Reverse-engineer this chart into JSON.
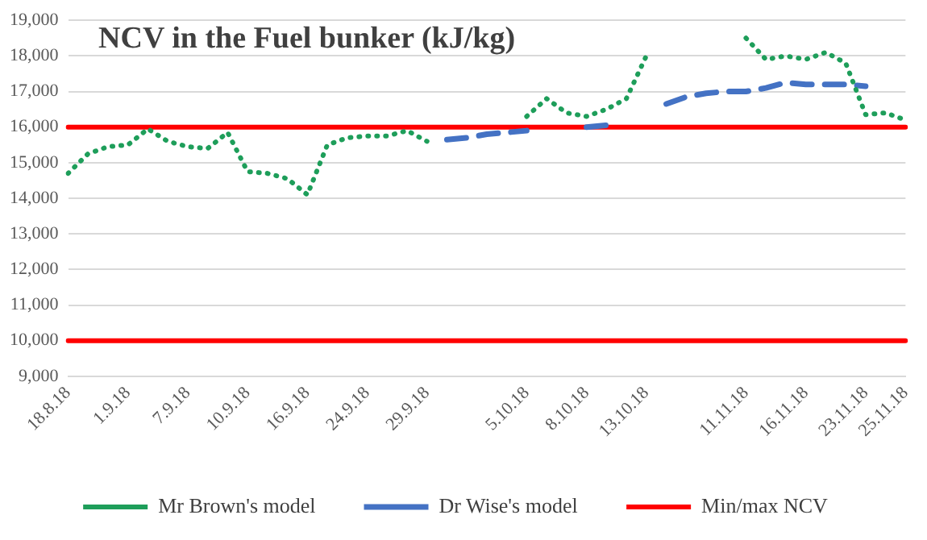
{
  "chart_data": {
    "type": "line",
    "title": "NCV in the Fuel bunker (kJ/kg)",
    "categories": [
      "18.8.18",
      null,
      null,
      "1.9.18",
      null,
      null,
      "7.9.18",
      null,
      null,
      "10.9.18",
      null,
      null,
      "16.9.18",
      null,
      null,
      "24.9.18",
      null,
      null,
      "29.9.18",
      null,
      null,
      null,
      null,
      "5.10.18",
      null,
      null,
      "8.10.18",
      null,
      null,
      "13.10.18",
      null,
      null,
      null,
      null,
      "11.11.18",
      null,
      null,
      "16.11.18",
      null,
      null,
      "23.11.18",
      null,
      "25.11.18"
    ],
    "series": [
      {
        "name": "Mr Brown's model",
        "color": "#1e9e5a",
        "line_style": "dotted",
        "values": [
          14700,
          15250,
          15450,
          15500,
          15950,
          15600,
          15450,
          15400,
          15850,
          14750,
          14700,
          14550,
          14100,
          15500,
          15700,
          15750,
          15750,
          15900,
          15600,
          null,
          null,
          null,
          null,
          16300,
          16800,
          16400,
          16300,
          16500,
          16800,
          18000,
          null,
          null,
          null,
          null,
          18500,
          17900,
          18000,
          17900,
          18100,
          17800,
          16350,
          16400,
          16200
        ]
      },
      {
        "name": "Dr Wise's model",
        "color": "#4472c4",
        "line_style": "dashed",
        "values": [
          null,
          null,
          null,
          null,
          null,
          null,
          null,
          null,
          null,
          null,
          null,
          null,
          null,
          null,
          null,
          null,
          null,
          null,
          null,
          15650,
          15700,
          15800,
          15850,
          15900,
          null,
          null,
          16000,
          16050,
          null,
          null,
          16650,
          16850,
          16950,
          17000,
          17000,
          17100,
          17250,
          17200,
          17200,
          17200,
          17150,
          null,
          null
        ]
      },
      {
        "name": "Min/max NCV",
        "color": "#ff0000",
        "line_style": "solid",
        "values": [
          16000,
          16000,
          16000,
          16000,
          16000,
          16000,
          16000,
          16000,
          16000,
          16000,
          16000,
          16000,
          16000,
          16000,
          16000,
          16000,
          16000,
          16000,
          16000,
          16000,
          16000,
          16000,
          16000,
          16000,
          16000,
          16000,
          16000,
          16000,
          16000,
          16000,
          16000,
          16000,
          16000,
          16000,
          16000,
          16000,
          16000,
          16000,
          16000,
          16000,
          16000,
          16000,
          16000
        ]
      },
      {
        "color": "#ff0000",
        "line_style": "solid",
        "values": [
          10000,
          10000,
          10000,
          10000,
          10000,
          10000,
          10000,
          10000,
          10000,
          10000,
          10000,
          10000,
          10000,
          10000,
          10000,
          10000,
          10000,
          10000,
          10000,
          10000,
          10000,
          10000,
          10000,
          10000,
          10000,
          10000,
          10000,
          10000,
          10000,
          10000,
          10000,
          10000,
          10000,
          10000,
          10000,
          10000,
          10000,
          10000,
          10000,
          10000,
          10000,
          10000,
          10000
        ]
      }
    ],
    "ylim": [
      9000,
      19000
    ],
    "yticks": [
      {
        "value": 9000,
        "label": "9,000"
      },
      {
        "value": 10000,
        "label": "10,000"
      },
      {
        "value": 11000,
        "label": "11,000"
      },
      {
        "value": 12000,
        "label": "12,000"
      },
      {
        "value": 13000,
        "label": "13,000"
      },
      {
        "value": 14000,
        "label": "14,000"
      },
      {
        "value": 15000,
        "label": "15,000"
      },
      {
        "value": 16000,
        "label": "16,000"
      },
      {
        "value": 17000,
        "label": "17,000"
      },
      {
        "value": 18000,
        "label": "18,000"
      },
      {
        "value": 19000,
        "label": "19,000"
      }
    ],
    "grid": "y",
    "legend": "bottom",
    "marker": "none"
  }
}
